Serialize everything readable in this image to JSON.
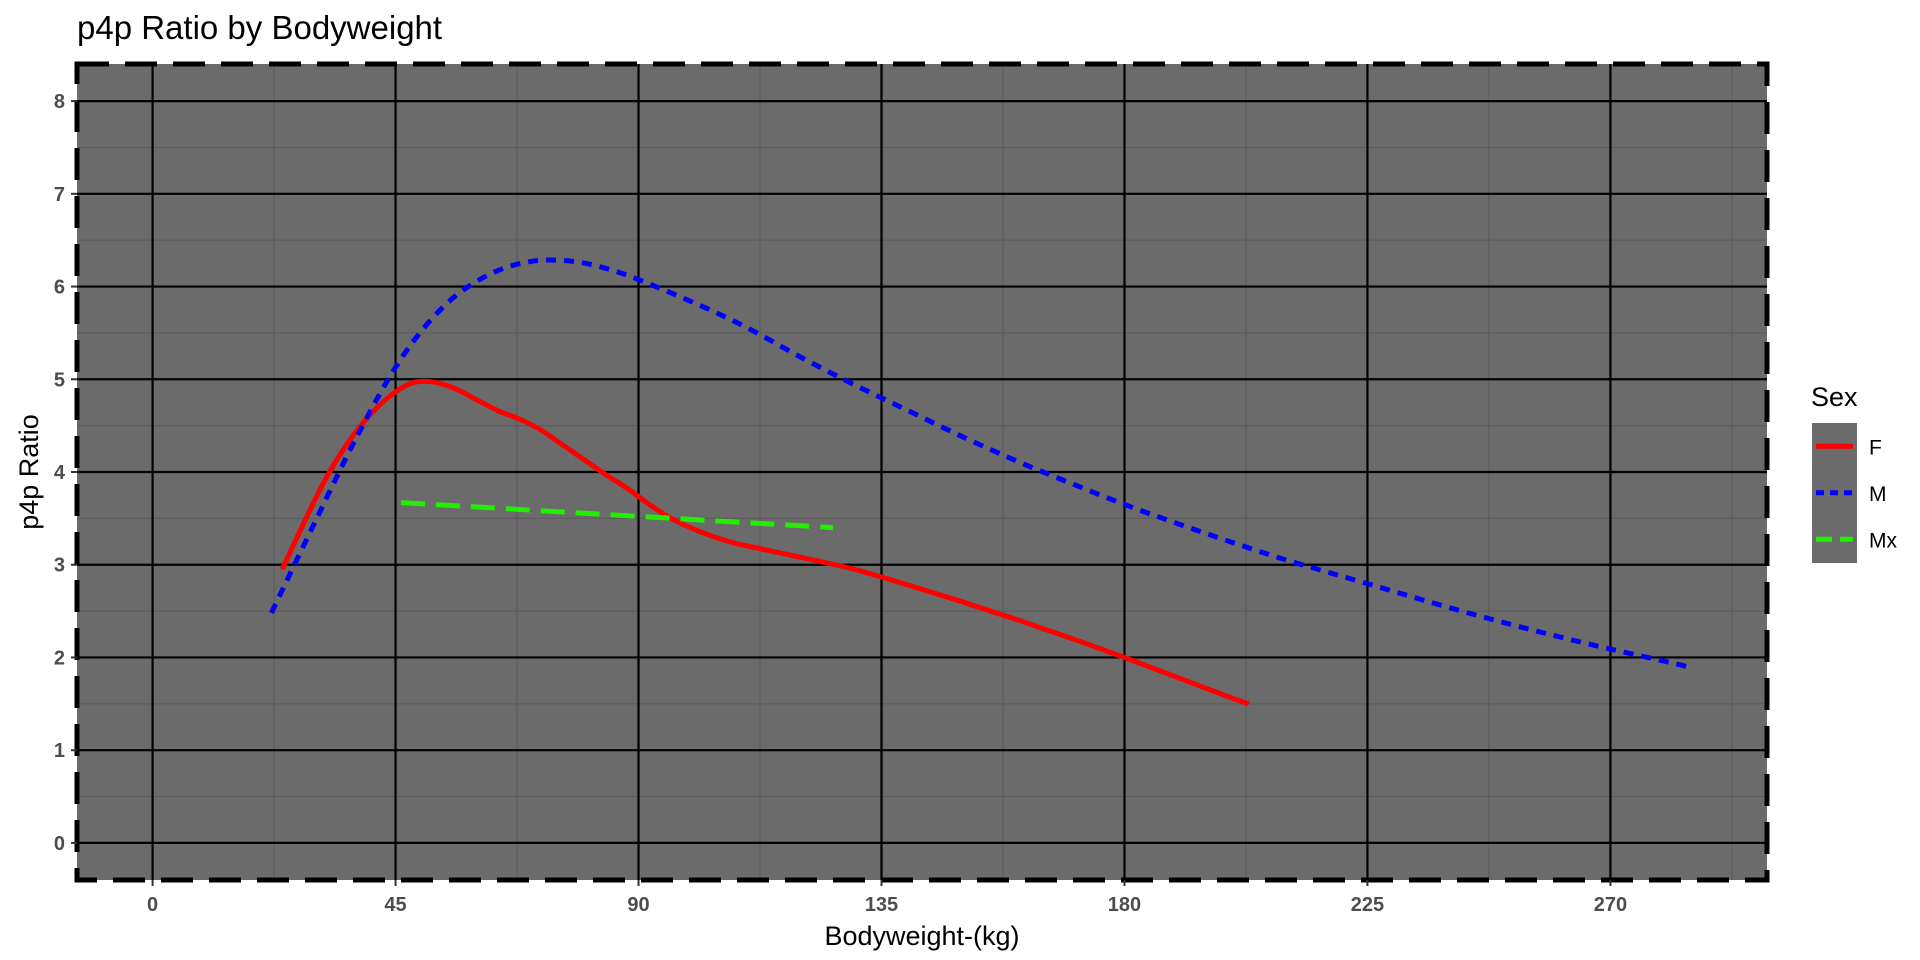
{
  "chart_data": {
    "type": "line",
    "title": "p4p Ratio by Bodyweight",
    "xlabel": "Bodyweight-(kg)",
    "ylabel": "p4p Ratio",
    "xlim": [
      -14,
      299
    ],
    "ylim": [
      -0.4,
      8.4
    ],
    "x_ticks": [
      0,
      45,
      90,
      135,
      180,
      225,
      270
    ],
    "x_tick_labels": [
      "0",
      "45",
      "90",
      "135",
      "180",
      "225",
      "270"
    ],
    "y_ticks": [
      0,
      1,
      2,
      3,
      4,
      5,
      6,
      7,
      8
    ],
    "y_tick_labels": [
      "0",
      "1",
      "2",
      "3",
      "4",
      "5",
      "6",
      "7",
      "8"
    ],
    "grid": true,
    "panel_color": "#6b6b6b",
    "major_grid_color": "#000000",
    "legend": {
      "title": "Sex",
      "position": "right"
    },
    "series": [
      {
        "name": "F",
        "color": "#ff0000",
        "linestyle": "solid",
        "x": [
          24,
          28,
          32,
          36,
          40,
          44,
          48,
          52,
          56,
          60,
          64,
          68,
          72,
          76,
          80,
          84,
          88,
          92,
          96,
          100,
          104,
          108,
          112,
          120,
          130,
          140,
          150,
          160,
          170,
          180,
          190,
          200,
          203
        ],
        "y": [
          2.95,
          3.45,
          3.92,
          4.3,
          4.6,
          4.82,
          4.96,
          4.97,
          4.9,
          4.78,
          4.66,
          4.57,
          4.45,
          4.29,
          4.13,
          3.97,
          3.82,
          3.65,
          3.5,
          3.39,
          3.3,
          3.23,
          3.18,
          3.08,
          2.95,
          2.78,
          2.6,
          2.41,
          2.21,
          2.0,
          1.78,
          1.56,
          1.5
        ]
      },
      {
        "name": "M",
        "color": "#0000ff",
        "linestyle": "dotted",
        "x": [
          22,
          30,
          38,
          46,
          54,
          62,
          70,
          78,
          86,
          94,
          102,
          110,
          120,
          130,
          140,
          150,
          160,
          170,
          180,
          190,
          200,
          210,
          220,
          230,
          240,
          250,
          260,
          270,
          280,
          285
        ],
        "y": [
          2.48,
          3.45,
          4.4,
          5.22,
          5.79,
          6.12,
          6.27,
          6.27,
          6.16,
          5.98,
          5.78,
          5.56,
          5.24,
          4.94,
          4.66,
          4.38,
          4.12,
          3.88,
          3.65,
          3.44,
          3.24,
          3.05,
          2.88,
          2.71,
          2.54,
          2.38,
          2.23,
          2.09,
          1.96,
          1.89
        ]
      },
      {
        "name": "Mx",
        "color": "#22ee00",
        "linestyle": "dashed",
        "x": [
          46,
          126
        ],
        "y": [
          3.67,
          3.4
        ]
      }
    ]
  }
}
